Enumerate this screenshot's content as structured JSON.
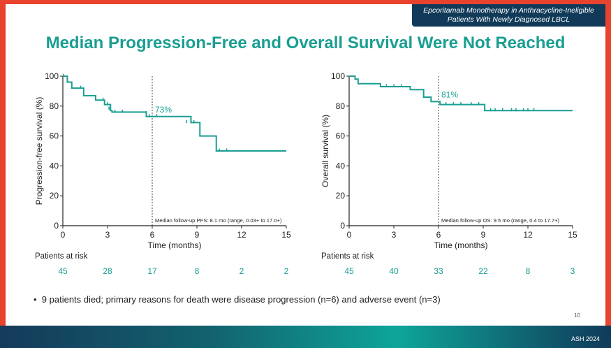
{
  "banner": {
    "line1": "Epcoritamab Monotherapy in Anthracycline-Ineligible",
    "line2": "Patients With Newly Diagnosed LBCL"
  },
  "title": "Median Progression-Free and Overall Survival Were Not Reached",
  "bullet": "9 patients died; primary reasons for death were disease progression (n=6) and adverse event (n=3)",
  "page_number": "10",
  "conference": "ASH 2024",
  "colors": {
    "accent": "#1a9e92",
    "title": "#1a9e92",
    "banner": "#113a59",
    "frame": "#e8432f"
  },
  "chart_data": [
    {
      "type": "line",
      "step": true,
      "ylabel": "Progression-free survival (%)",
      "xlabel": "Time (months)",
      "xlim": [
        0,
        15
      ],
      "ylim": [
        0,
        100
      ],
      "xticks": [
        0,
        3,
        6,
        9,
        12,
        15
      ],
      "yticks": [
        0,
        20,
        40,
        60,
        80,
        100
      ],
      "curve": [
        [
          0,
          100
        ],
        [
          0.3,
          96
        ],
        [
          0.6,
          92
        ],
        [
          1.4,
          87
        ],
        [
          2.2,
          84
        ],
        [
          2.8,
          81
        ],
        [
          3.2,
          77
        ],
        [
          3.3,
          76
        ],
        [
          5.5,
          76
        ],
        [
          5.6,
          73
        ],
        [
          8.3,
          73
        ],
        [
          8.6,
          69
        ],
        [
          9.1,
          69
        ],
        [
          9.2,
          60
        ],
        [
          10.2,
          60
        ],
        [
          10.3,
          50
        ],
        [
          15,
          50
        ]
      ],
      "censor": [
        [
          0.05,
          100
        ],
        [
          1.2,
          92
        ],
        [
          2.7,
          84
        ],
        [
          3.0,
          81
        ],
        [
          3.1,
          78
        ],
        [
          3.5,
          76
        ],
        [
          4.0,
          76
        ],
        [
          5.6,
          75
        ],
        [
          5.8,
          73
        ],
        [
          6.3,
          73
        ],
        [
          8.3,
          69
        ],
        [
          8.6,
          69
        ],
        [
          8.8,
          69
        ],
        [
          10.5,
          50
        ],
        [
          11.0,
          50
        ]
      ],
      "marker_label": "73%",
      "marker_x": 6,
      "followup": "Median follow-up PFS: 8.1 mo (range, 0.03+ to 17.0+)",
      "at_risk_label": "Patients at risk",
      "at_risk": [
        "45",
        "28",
        "17",
        "8",
        "2",
        "2"
      ]
    },
    {
      "type": "line",
      "step": true,
      "ylabel": "Overall survival (%)",
      "xlabel": "Time (months)",
      "xlim": [
        0,
        15
      ],
      "ylim": [
        0,
        100
      ],
      "xticks": [
        0,
        3,
        6,
        9,
        12,
        15
      ],
      "yticks": [
        0,
        20,
        40,
        60,
        80,
        100
      ],
      "curve": [
        [
          0,
          100
        ],
        [
          0.4,
          98
        ],
        [
          0.6,
          95
        ],
        [
          2.0,
          95
        ],
        [
          2.1,
          93
        ],
        [
          4.0,
          93
        ],
        [
          4.1,
          91
        ],
        [
          4.9,
          91
        ],
        [
          5.0,
          86
        ],
        [
          5.4,
          86
        ],
        [
          5.5,
          83
        ],
        [
          6.0,
          83
        ],
        [
          6.1,
          81
        ],
        [
          9.0,
          81
        ],
        [
          9.1,
          77
        ],
        [
          15,
          77
        ]
      ],
      "censor": [
        [
          2.5,
          93
        ],
        [
          3.0,
          93
        ],
        [
          3.5,
          93
        ],
        [
          6.5,
          81
        ],
        [
          7.0,
          81
        ],
        [
          7.5,
          81
        ],
        [
          8.2,
          81
        ],
        [
          8.7,
          81
        ],
        [
          9.5,
          77
        ],
        [
          9.8,
          77
        ],
        [
          10.3,
          77
        ],
        [
          10.9,
          77
        ],
        [
          11.2,
          77
        ],
        [
          11.7,
          77
        ],
        [
          12.0,
          77
        ],
        [
          12.4,
          77
        ]
      ],
      "marker_label": "81%",
      "marker_x": 6,
      "followup": "Median follow-up OS: 9.5 mo (range, 0.4 to 17.7+)",
      "at_risk_label": "Patients at risk",
      "at_risk": [
        "45",
        "40",
        "33",
        "22",
        "8",
        "3"
      ]
    }
  ]
}
